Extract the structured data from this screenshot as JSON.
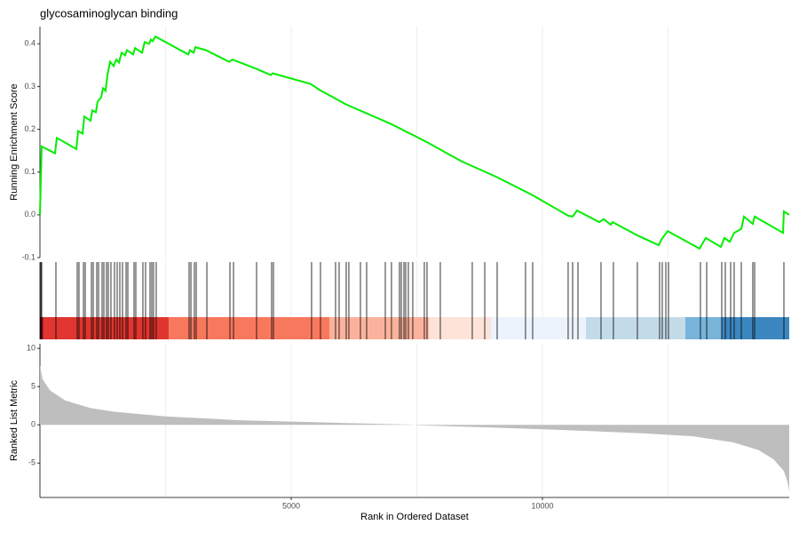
{
  "chart_data": [
    {
      "type": "line",
      "title": "glycosaminoglycan binding",
      "y_label": "Running Enrichment Score",
      "color": "#00ee00",
      "xlim": [
        0,
        14912
      ],
      "ylim": [
        -0.1,
        0.44
      ],
      "yticks": [
        -0.1,
        {
          "value": 0,
          "label": "0.0"
        },
        0.1,
        0.2,
        0.3,
        0.4
      ],
      "xgrid": [
        2500,
        5000,
        7500,
        10000,
        12500
      ],
      "x": [
        0,
        18,
        35,
        300,
        336,
        724,
        760,
        848,
        883,
        1007,
        1042,
        1113,
        1148,
        1219,
        1254,
        1307,
        1343,
        1396,
        1466,
        1519,
        1572,
        1625,
        1696,
        1731,
        1855,
        1890,
        2032,
        2085,
        2173,
        2208,
        2244,
        2297,
        2951,
        2986,
        3057,
        3092,
        3304,
        3763,
        3834,
        4293,
        4594,
        4629,
        5389,
        5565,
        6095,
        6979,
        7686,
        8392,
        9099,
        9806,
        10512,
        10601,
        10689,
        11131,
        11219,
        11360,
        11396,
        11890,
        12314,
        12367,
        12491,
        13127,
        13251,
        13551,
        13622,
        13728,
        13816,
        13958,
        14011,
        14187,
        14223,
        14788,
        14806,
        14912
      ],
      "values": [
        0,
        0.087,
        0.16,
        0.144,
        0.18,
        0.154,
        0.196,
        0.19,
        0.23,
        0.22,
        0.244,
        0.24,
        0.265,
        0.275,
        0.296,
        0.29,
        0.327,
        0.358,
        0.348,
        0.363,
        0.356,
        0.379,
        0.373,
        0.385,
        0.375,
        0.39,
        0.379,
        0.404,
        0.4,
        0.41,
        0.406,
        0.417,
        0.375,
        0.385,
        0.379,
        0.392,
        0.385,
        0.358,
        0.363,
        0.342,
        0.327,
        0.331,
        0.306,
        0.292,
        0.258,
        0.213,
        0.171,
        0.125,
        0.088,
        0.046,
        -0.002,
        -0.004,
        0.01,
        -0.017,
        -0.01,
        -0.023,
        -0.017,
        -0.048,
        -0.071,
        -0.058,
        -0.038,
        -0.079,
        -0.054,
        -0.075,
        -0.054,
        -0.063,
        -0.042,
        -0.033,
        -0.004,
        -0.021,
        -0.004,
        -0.042,
        0.008,
        0
      ]
    },
    {
      "type": "rug",
      "color": "#000000",
      "xlim": [
        0,
        14912
      ],
      "xgrid": [
        2500,
        5000,
        7500,
        10000,
        12500
      ],
      "hits": [
        0,
        18,
        35,
        318,
        742,
        777,
        866,
        901,
        1025,
        1060,
        1131,
        1166,
        1237,
        1272,
        1325,
        1360,
        1413,
        1484,
        1537,
        1590,
        1643,
        1714,
        1749,
        1873,
        1908,
        2049,
        2102,
        2191,
        2226,
        2261,
        2314,
        2968,
        3004,
        3074,
        3110,
        3322,
        3781,
        3852,
        4311,
        4611,
        4647,
        5406,
        5583,
        5883,
        5954,
        6095,
        6148,
        6378,
        6502,
        6873,
        6996,
        7155,
        7191,
        7244,
        7279,
        7332,
        7420,
        7650,
        7703,
        7968,
        8604,
        8852,
        9099,
        9664,
        9806,
        10512,
        10601,
        10707,
        11166,
        11413,
        11890,
        12332,
        12385,
        12456,
        12509,
        13145,
        13269,
        13569,
        13640,
        13746,
        13816,
        13958,
        14187,
        14223,
        14806
      ],
      "band_edges": [
        0,
        71,
        2562,
        5760,
        7739,
        8975,
        10866,
        12845,
        13569,
        14912
      ],
      "band_colors": [
        "#b2182b",
        "#e0362f",
        "#f8785e",
        "#fbb29c",
        "#fde3d8",
        "#edf3fc",
        "#c3dbe9",
        "#78b3da",
        "#3c87c0"
      ]
    },
    {
      "type": "area",
      "y_label": "Ranked List Metric",
      "x_label": "Rank in Ordered Dataset",
      "color": "#bebebe",
      "xlim": [
        0,
        14912
      ],
      "ylim": [
        -9.5,
        10.6
      ],
      "yticks": [
        -5,
        0,
        5,
        10
      ],
      "xticks": [
        5000,
        10000
      ],
      "xgrid": [
        2500,
        5000,
        7500,
        10000,
        12500
      ],
      "x": [
        0,
        50,
        200,
        500,
        1000,
        1500,
        2500,
        4000,
        6000,
        7400,
        7500,
        9000,
        10500,
        12000,
        13000,
        13800,
        14300,
        14600,
        14800,
        14880,
        14912
      ],
      "values": [
        7.8,
        6,
        4.5,
        3.2,
        2.2,
        1.7,
        1.1,
        0.6,
        0.25,
        0.02,
        -0.05,
        -0.35,
        -0.7,
        -1.1,
        -1.5,
        -2.3,
        -3.3,
        -4.5,
        -6,
        -7.5,
        -8.7
      ]
    }
  ]
}
